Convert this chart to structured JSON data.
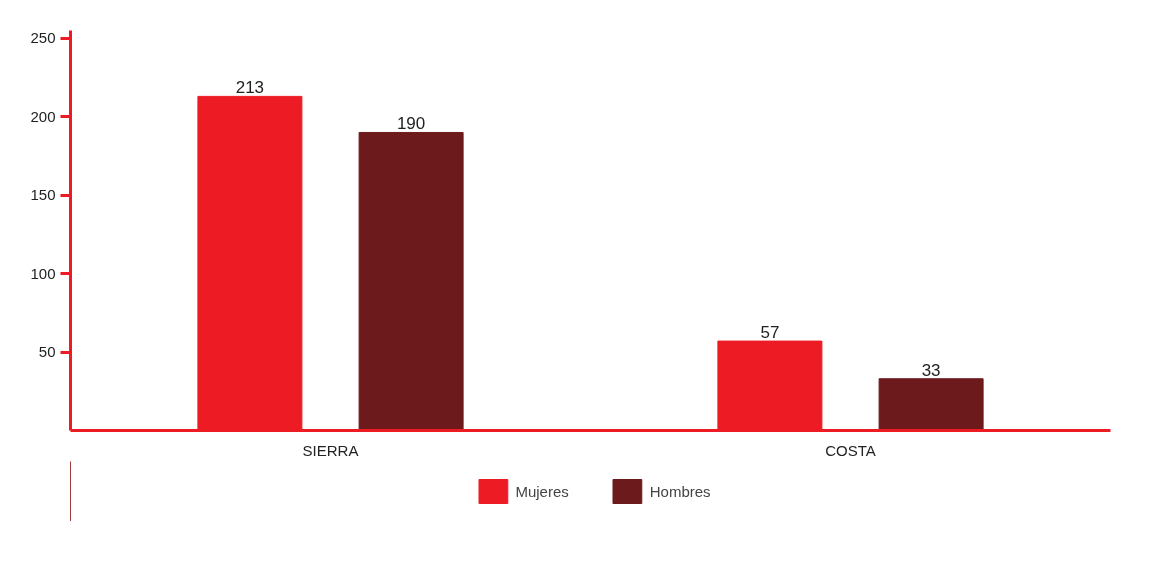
{
  "chart_data": {
    "type": "bar",
    "categories": [
      "SIERRA",
      "COSTA"
    ],
    "series": [
      {
        "name": "Mujeres",
        "color": "#ed1c24",
        "values": [
          213,
          57
        ]
      },
      {
        "name": "Hombres",
        "color": "#6d1a1d",
        "values": [
          190,
          33
        ]
      }
    ],
    "ylim": [
      0,
      255
    ],
    "yticks": [
      50,
      100,
      150,
      200,
      250
    ],
    "grid": false,
    "legend": "bottom",
    "data_labels": true
  }
}
